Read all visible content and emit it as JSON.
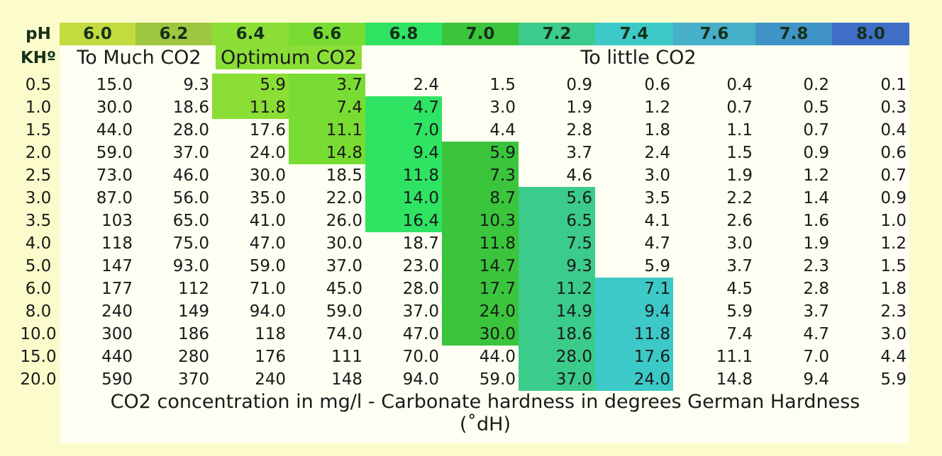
{
  "header": {
    "ph_label": "pH",
    "kh_label": "KHº",
    "ph_values": [
      "6.0",
      "6.2",
      "6.4",
      "6.6",
      "6.8",
      "7.0",
      "7.2",
      "7.4",
      "7.6",
      "7.8",
      "8.0"
    ]
  },
  "colors": {
    "background": "#FBFBCB",
    "panel": "#FEFEF2",
    "header": [
      "#C4DB3F",
      "#9FC640",
      "#8ADE36",
      "#79DC32",
      "#2FE363",
      "#3AC53C",
      "#3BCB8B",
      "#3CC9C7",
      "#46AFCA",
      "#3F93C6",
      "#3F6EC7"
    ],
    "optimum": "#8ADE36",
    "highlight": [
      "#8ADE36",
      "#79DC32",
      "#2FE363",
      "#3AC53C",
      "#3BCB8B",
      "#3CC9C7"
    ]
  },
  "categories": {
    "too_much": "To Much CO2",
    "optimum": "Optimum CO2",
    "too_little": "To little CO2"
  },
  "rows": [
    {
      "kh": "0.5",
      "values": [
        "15.0",
        "9.3",
        "5.9",
        "3.7",
        "2.4",
        "1.5",
        "0.9",
        "0.6",
        "0.4",
        "0.2",
        "0.1"
      ]
    },
    {
      "kh": "1.0",
      "values": [
        "30.0",
        "18.6",
        "11.8",
        "7.4",
        "4.7",
        "3.0",
        "1.9",
        "1.2",
        "0.7",
        "0.5",
        "0.3"
      ]
    },
    {
      "kh": "1.5",
      "values": [
        "44.0",
        "28.0",
        "17.6",
        "11.1",
        "7.0",
        "4.4",
        "2.8",
        "1.8",
        "1.1",
        "0.7",
        "0.4"
      ]
    },
    {
      "kh": "2.0",
      "values": [
        "59.0",
        "37.0",
        "24.0",
        "14.8",
        "9.4",
        "5.9",
        "3.7",
        "2.4",
        "1.5",
        "0.9",
        "0.6"
      ]
    },
    {
      "kh": "2.5",
      "values": [
        "73.0",
        "46.0",
        "30.0",
        "18.5",
        "11.8",
        "7.3",
        "4.6",
        "3.0",
        "1.9",
        "1.2",
        "0.7"
      ]
    },
    {
      "kh": "3.0",
      "values": [
        "87.0",
        "56.0",
        "35.0",
        "22.0",
        "14.0",
        "8.7",
        "5.6",
        "3.5",
        "2.2",
        "1.4",
        "0.9"
      ]
    },
    {
      "kh": "3.5",
      "values": [
        "103",
        "65.0",
        "41.0",
        "26.0",
        "16.4",
        "10.3",
        "6.5",
        "4.1",
        "2.6",
        "1.6",
        "1.0"
      ]
    },
    {
      "kh": "4.0",
      "values": [
        "118",
        "75.0",
        "47.0",
        "30.0",
        "18.7",
        "11.8",
        "7.5",
        "4.7",
        "3.0",
        "1.9",
        "1.2"
      ]
    },
    {
      "kh": "5.0",
      "values": [
        "147",
        "93.0",
        "59.0",
        "37.0",
        "23.0",
        "14.7",
        "9.3",
        "5.9",
        "3.7",
        "2.3",
        "1.5"
      ]
    },
    {
      "kh": "6.0",
      "values": [
        "177",
        "112",
        "71.0",
        "45.0",
        "28.0",
        "17.7",
        "11.2",
        "7.1",
        "4.5",
        "2.8",
        "1.8"
      ]
    },
    {
      "kh": "8.0",
      "values": [
        "240",
        "149",
        "94.0",
        "59.0",
        "37.0",
        "24.0",
        "14.9",
        "9.4",
        "5.9",
        "3.7",
        "2.3"
      ]
    },
    {
      "kh": "10.0",
      "values": [
        "300",
        "186",
        "118",
        "74.0",
        "47.0",
        "30.0",
        "18.6",
        "11.8",
        "7.4",
        "4.7",
        "3.0"
      ]
    },
    {
      "kh": "15.0",
      "values": [
        "440",
        "280",
        "176",
        "111",
        "70.0",
        "44.0",
        "28.0",
        "17.6",
        "11.1",
        "7.0",
        "4.4"
      ]
    },
    {
      "kh": "20.0",
      "values": [
        "590",
        "370",
        "240",
        "148",
        "94.0",
        "59.0",
        "37.0",
        "24.0",
        "14.8",
        "9.4",
        "5.9"
      ]
    }
  ],
  "highlights": [
    {
      "col": 2,
      "rows": [
        0,
        1
      ]
    },
    {
      "col": 3,
      "rows": [
        0,
        1,
        2,
        3
      ]
    },
    {
      "col": 4,
      "rows": [
        1,
        2,
        3,
        4,
        5,
        6
      ]
    },
    {
      "col": 5,
      "rows": [
        3,
        4,
        5,
        6,
        7,
        8,
        9,
        10,
        11
      ]
    },
    {
      "col": 6,
      "rows": [
        5,
        6,
        7,
        8,
        9,
        10,
        11,
        12,
        13
      ]
    },
    {
      "col": 7,
      "rows": [
        9,
        10,
        11,
        12,
        13
      ]
    }
  ],
  "footer": {
    "line1": "CO2 concentration in mg/l - Carbonate hardness in degrees German Hardness",
    "line2": "(˚dH)"
  }
}
